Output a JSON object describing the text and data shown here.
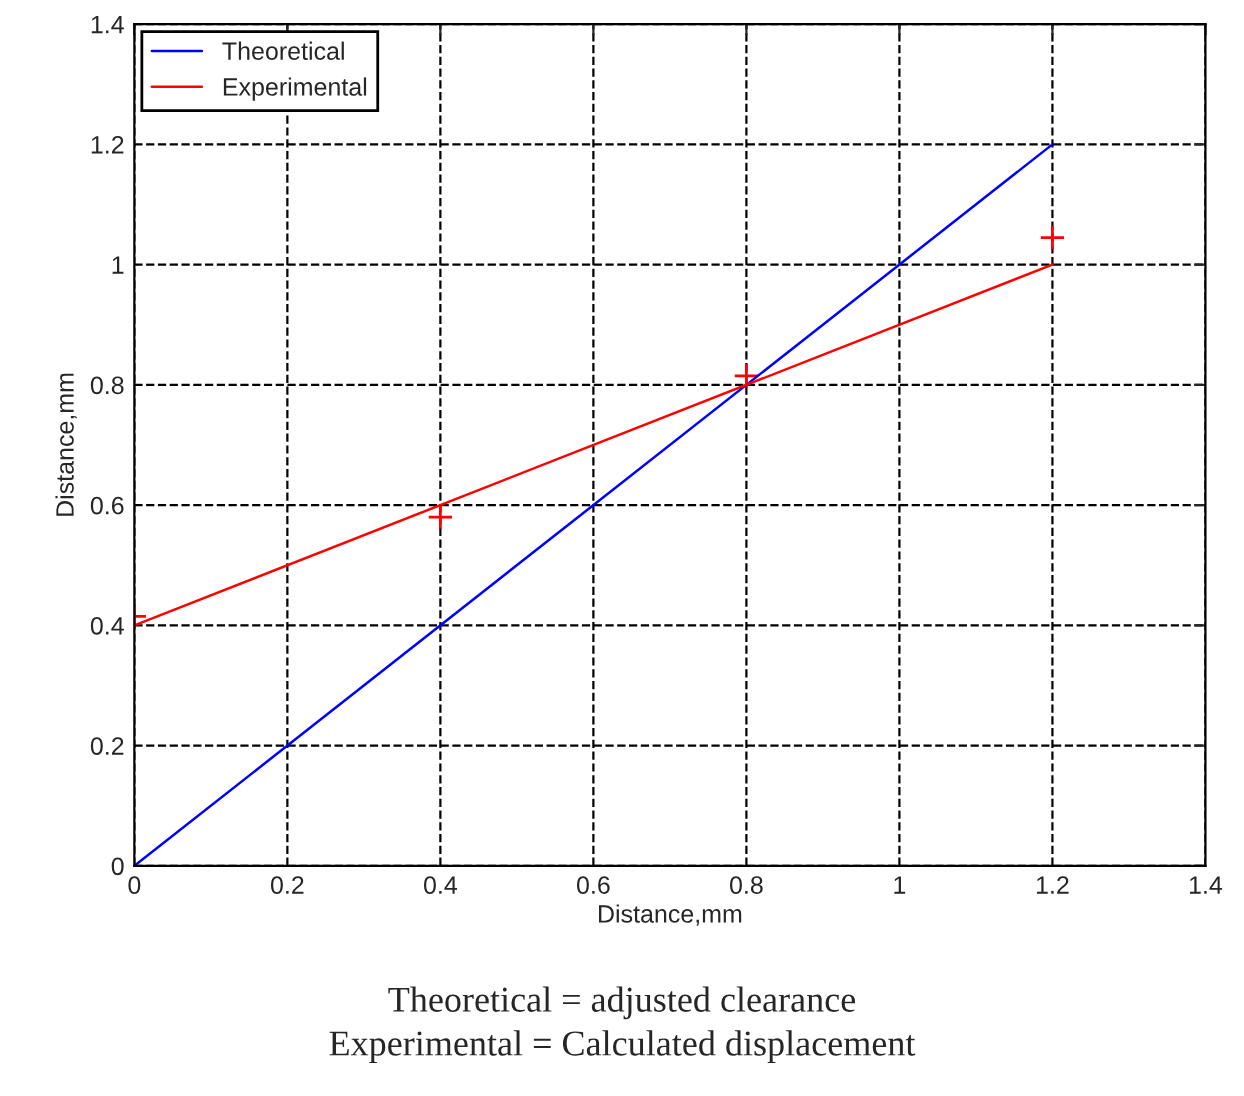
{
  "chart_data": {
    "type": "line",
    "xlabel": "Distance,mm",
    "ylabel": "Distance,mm",
    "series": [
      {
        "name": "Theoretical",
        "color": "#0000ff",
        "x": [
          0,
          1.2
        ],
        "values": [
          0,
          1.2
        ]
      },
      {
        "name": "Experimental",
        "color": "#ff0000",
        "x": [
          0,
          1.2
        ],
        "values": [
          0.4,
          1.0
        ]
      },
      {
        "type": "scatter",
        "color": "#ff0000",
        "marker": "cross",
        "x": [
          0,
          0.4,
          0.8,
          1.2
        ],
        "values": [
          0.415,
          0.58,
          0.815,
          1.045
        ]
      }
    ],
    "xlim": [
      0,
      1.4
    ],
    "xticks": [
      0,
      0.2,
      0.4,
      0.6,
      0.8,
      1,
      1.2,
      1.4
    ],
    "ylim": [
      0,
      1.4
    ],
    "yticks": [
      0,
      0.2,
      0.4,
      0.6,
      0.8,
      1,
      1.2,
      1.4
    ],
    "grid": true,
    "legend": "top left",
    "annotations": [
      "Theoretical = adjusted clearance",
      "Experimental = Calculated displacement"
    ]
  }
}
